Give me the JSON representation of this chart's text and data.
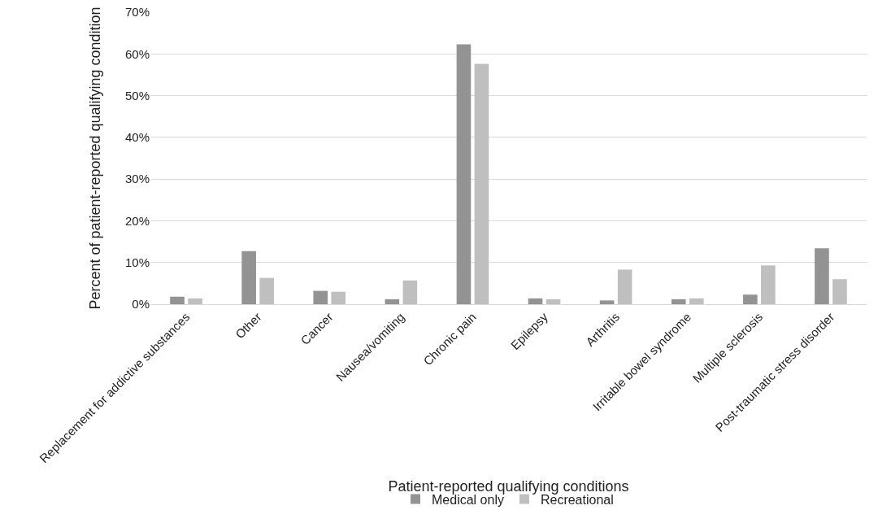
{
  "chart_data": {
    "type": "bar",
    "xlabel": "Patient-reported qualifying conditions",
    "ylabel": "Percent of patient-reported qualifying condition",
    "categories": [
      "Replacement for addictive substances",
      "Other",
      "Cancer",
      "Nausea/vomiting",
      "Chronic pain",
      "Epilepsy",
      "Arthritis",
      "Irritable bowel syndrome",
      "Multiple sclerosis",
      "Post-traumatic stress disorder"
    ],
    "series": [
      {
        "name": "Medical only",
        "color": "#939393",
        "values": [
          1.8,
          12.7,
          3.2,
          1.2,
          62.3,
          1.4,
          0.9,
          1.2,
          2.3,
          13.4
        ]
      },
      {
        "name": "Recreational",
        "color": "#bfbfbf",
        "values": [
          1.4,
          6.3,
          3.0,
          5.7,
          57.6,
          1.2,
          8.3,
          1.4,
          9.3,
          6.0
        ]
      }
    ],
    "ylim": [
      0,
      70
    ],
    "yticks": [
      {
        "value": 0,
        "label": "0%"
      },
      {
        "value": 10,
        "label": "10%"
      },
      {
        "value": 20,
        "label": "20%"
      },
      {
        "value": 30,
        "label": "30%"
      },
      {
        "value": 40,
        "label": "40%"
      },
      {
        "value": 50,
        "label": "50%"
      },
      {
        "value": 60,
        "label": "60%"
      },
      {
        "value": 70,
        "label": "70%"
      }
    ],
    "grid": "y",
    "legend": "bottom"
  }
}
